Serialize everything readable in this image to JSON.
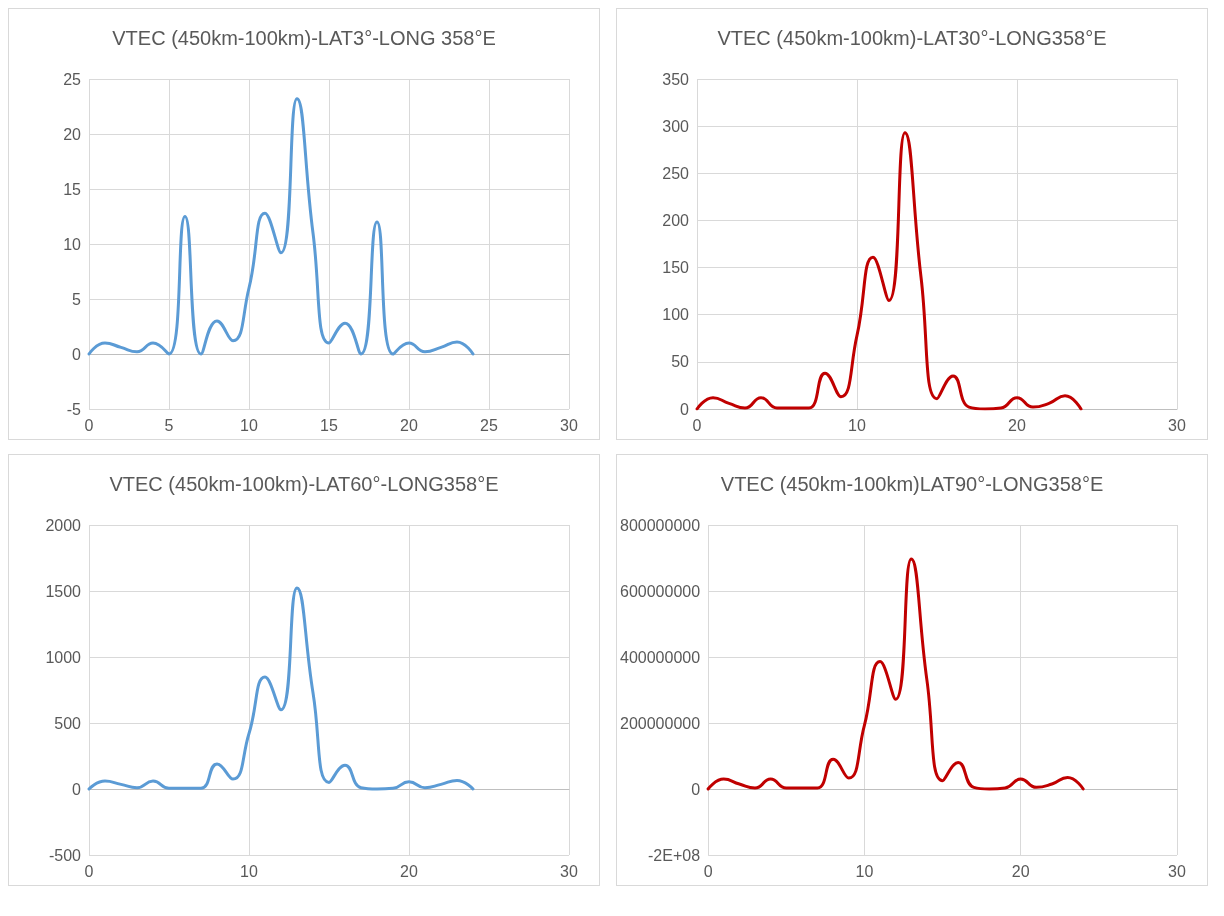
{
  "chart_data": [
    {
      "type": "line",
      "title": "VTEC (450km-100km)-LAT3°-LONG 358°E",
      "x": [
        0,
        1,
        2,
        3,
        4,
        5,
        6,
        7,
        8,
        9,
        10,
        11,
        12,
        13,
        14,
        15,
        16,
        17,
        18,
        19,
        20,
        21,
        22,
        23,
        24
      ],
      "series": [
        {
          "color": "#5b9bd5",
          "values": [
            0,
            1,
            0.6,
            0.2,
            1,
            0,
            12.5,
            0,
            3,
            1.2,
            6,
            12.8,
            9.2,
            23.2,
            11,
            1,
            2.8,
            0,
            12,
            0,
            1,
            0.2,
            0.6,
            1.1,
            0
          ]
        }
      ],
      "xlim": [
        0,
        30
      ],
      "xticks": [
        0,
        5,
        10,
        15,
        20,
        25,
        30
      ],
      "ylim": [
        -5,
        25
      ],
      "yticks": [
        -5,
        0,
        5,
        10,
        15,
        20,
        25
      ],
      "grid": true,
      "marker": "none",
      "line_style": "solid"
    },
    {
      "type": "line",
      "title": "VTEC (450km-100km)-LAT30°-LONG358°E",
      "x": [
        0,
        1,
        2,
        3,
        4,
        5,
        6,
        7,
        8,
        9,
        10,
        11,
        12,
        13,
        14,
        15,
        16,
        17,
        18,
        19,
        20,
        21,
        22,
        23,
        24
      ],
      "series": [
        {
          "color": "#c00000",
          "values": [
            0,
            12,
            6,
            1,
            12,
            1,
            1,
            1,
            38,
            13,
            78,
            161,
            115,
            293,
            140,
            11,
            35,
            2,
            0,
            1,
            12,
            2,
            6,
            14,
            0
          ]
        }
      ],
      "xlim": [
        0,
        30
      ],
      "xticks": [
        0,
        10,
        20,
        30
      ],
      "ylim": [
        0,
        350
      ],
      "yticks": [
        0,
        50,
        100,
        150,
        200,
        250,
        300,
        350
      ],
      "grid": true,
      "marker": "none",
      "line_style": "solid"
    },
    {
      "type": "line",
      "title": "VTEC (450km-100km)-LAT60°-LONG358°E",
      "x": [
        0,
        1,
        2,
        3,
        4,
        5,
        6,
        7,
        8,
        9,
        10,
        11,
        12,
        13,
        14,
        15,
        16,
        17,
        18,
        19,
        20,
        21,
        22,
        23,
        24
      ],
      "series": [
        {
          "color": "#5b9bd5",
          "values": [
            0,
            60,
            35,
            10,
            60,
            5,
            5,
            5,
            190,
            75,
            420,
            848,
            600,
            1523,
            730,
            50,
            180,
            10,
            0,
            5,
            55,
            10,
            35,
            65,
            0
          ]
        }
      ],
      "xlim": [
        0,
        30
      ],
      "xticks": [
        0,
        10,
        20,
        30
      ],
      "ylim": [
        -500,
        2000
      ],
      "yticks": [
        -500,
        0,
        500,
        1000,
        1500,
        2000
      ],
      "grid": true,
      "marker": "none",
      "line_style": "solid"
    },
    {
      "type": "line",
      "title": "VTEC (450km-100km)LAT90°-LONG358°E",
      "x": [
        0,
        1,
        2,
        3,
        4,
        5,
        6,
        7,
        8,
        9,
        10,
        11,
        12,
        13,
        14,
        15,
        16,
        17,
        18,
        19,
        20,
        21,
        22,
        23,
        24
      ],
      "series": [
        {
          "color": "#c00000",
          "values": [
            0,
            30000000,
            15000000,
            3000000,
            30000000,
            3000000,
            3000000,
            3000000,
            90000000,
            33000000,
            193000000,
            386000000,
            272000000,
            697000000,
            330000000,
            25000000,
            80000000,
            5000000,
            0,
            3000000,
            30000000,
            5000000,
            15000000,
            35000000,
            0
          ]
        }
      ],
      "xlim": [
        0,
        30
      ],
      "xticks": [
        0,
        10,
        20,
        30
      ],
      "ylim": [
        -200000000,
        800000000
      ],
      "yticks": [
        {
          "value": -200000000,
          "label": "-2E+08"
        },
        0,
        200000000,
        400000000,
        600000000,
        800000000
      ],
      "grid": true,
      "marker": "none",
      "line_style": "solid"
    }
  ]
}
